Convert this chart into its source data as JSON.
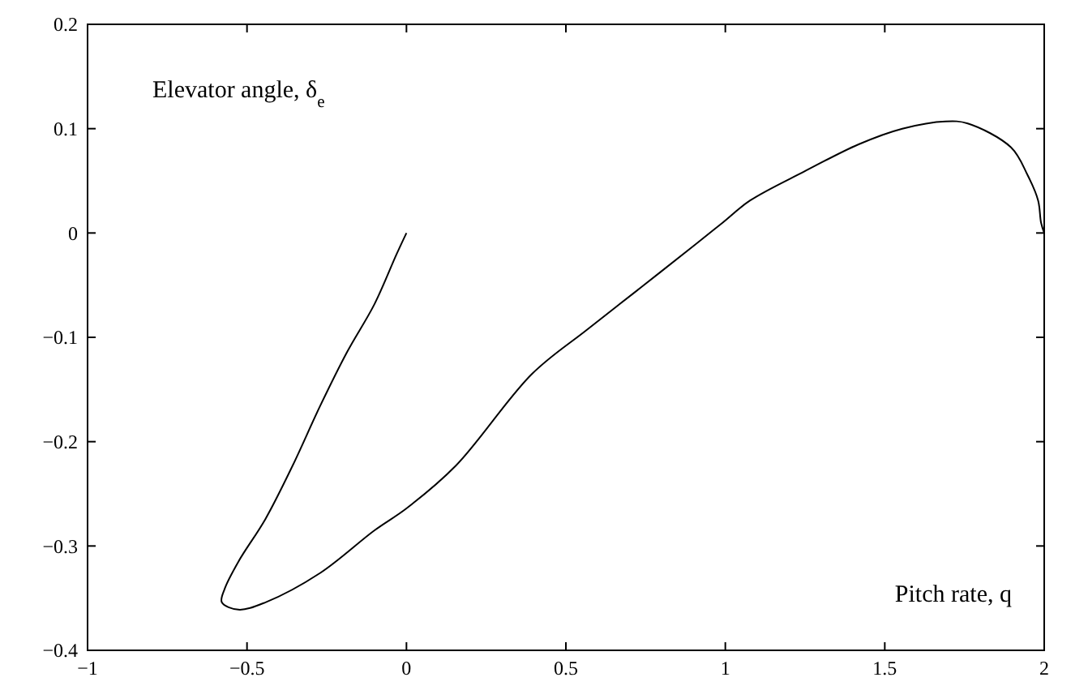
{
  "chart_data": {
    "type": "line",
    "xlabel": "Pitch rate, q",
    "ylabel": "Elevator angle, δ$_{e}$",
    "xlim": [
      -1,
      2
    ],
    "ylim": [
      -0.4,
      0.2
    ],
    "xticks": [
      -1,
      -0.5,
      0,
      0.5,
      1,
      1.5,
      2
    ],
    "yticks": [
      -0.4,
      -0.3,
      -0.2,
      -0.1,
      0,
      0.1,
      0.2
    ],
    "series": [
      {
        "color": "#000000",
        "x": [
          0,
          -0.032,
          -0.1,
          -0.186,
          -0.271,
          -0.357,
          -0.442,
          -0.527,
          -0.57,
          -0.579,
          -0.527,
          -0.442,
          -0.271,
          -0.1,
          0,
          0.155,
          0.394,
          0.565,
          0.736,
          0.906,
          0.992,
          1.077,
          1.248,
          1.418,
          1.555,
          1.691,
          1.76,
          1.896,
          1.947,
          1.981,
          1.99,
          2
        ],
        "values": [
          0,
          -0.021,
          -0.068,
          -0.114,
          -0.166,
          -0.223,
          -0.274,
          -0.315,
          -0.341,
          -0.354,
          -0.361,
          -0.354,
          -0.326,
          -0.285,
          -0.264,
          -0.223,
          -0.135,
          -0.093,
          -0.052,
          -0.011,
          0.01,
          0.031,
          0.059,
          0.085,
          0.1,
          0.107,
          0.105,
          0.082,
          0.056,
          0.031,
          0.01,
          0
        ]
      }
    ]
  }
}
